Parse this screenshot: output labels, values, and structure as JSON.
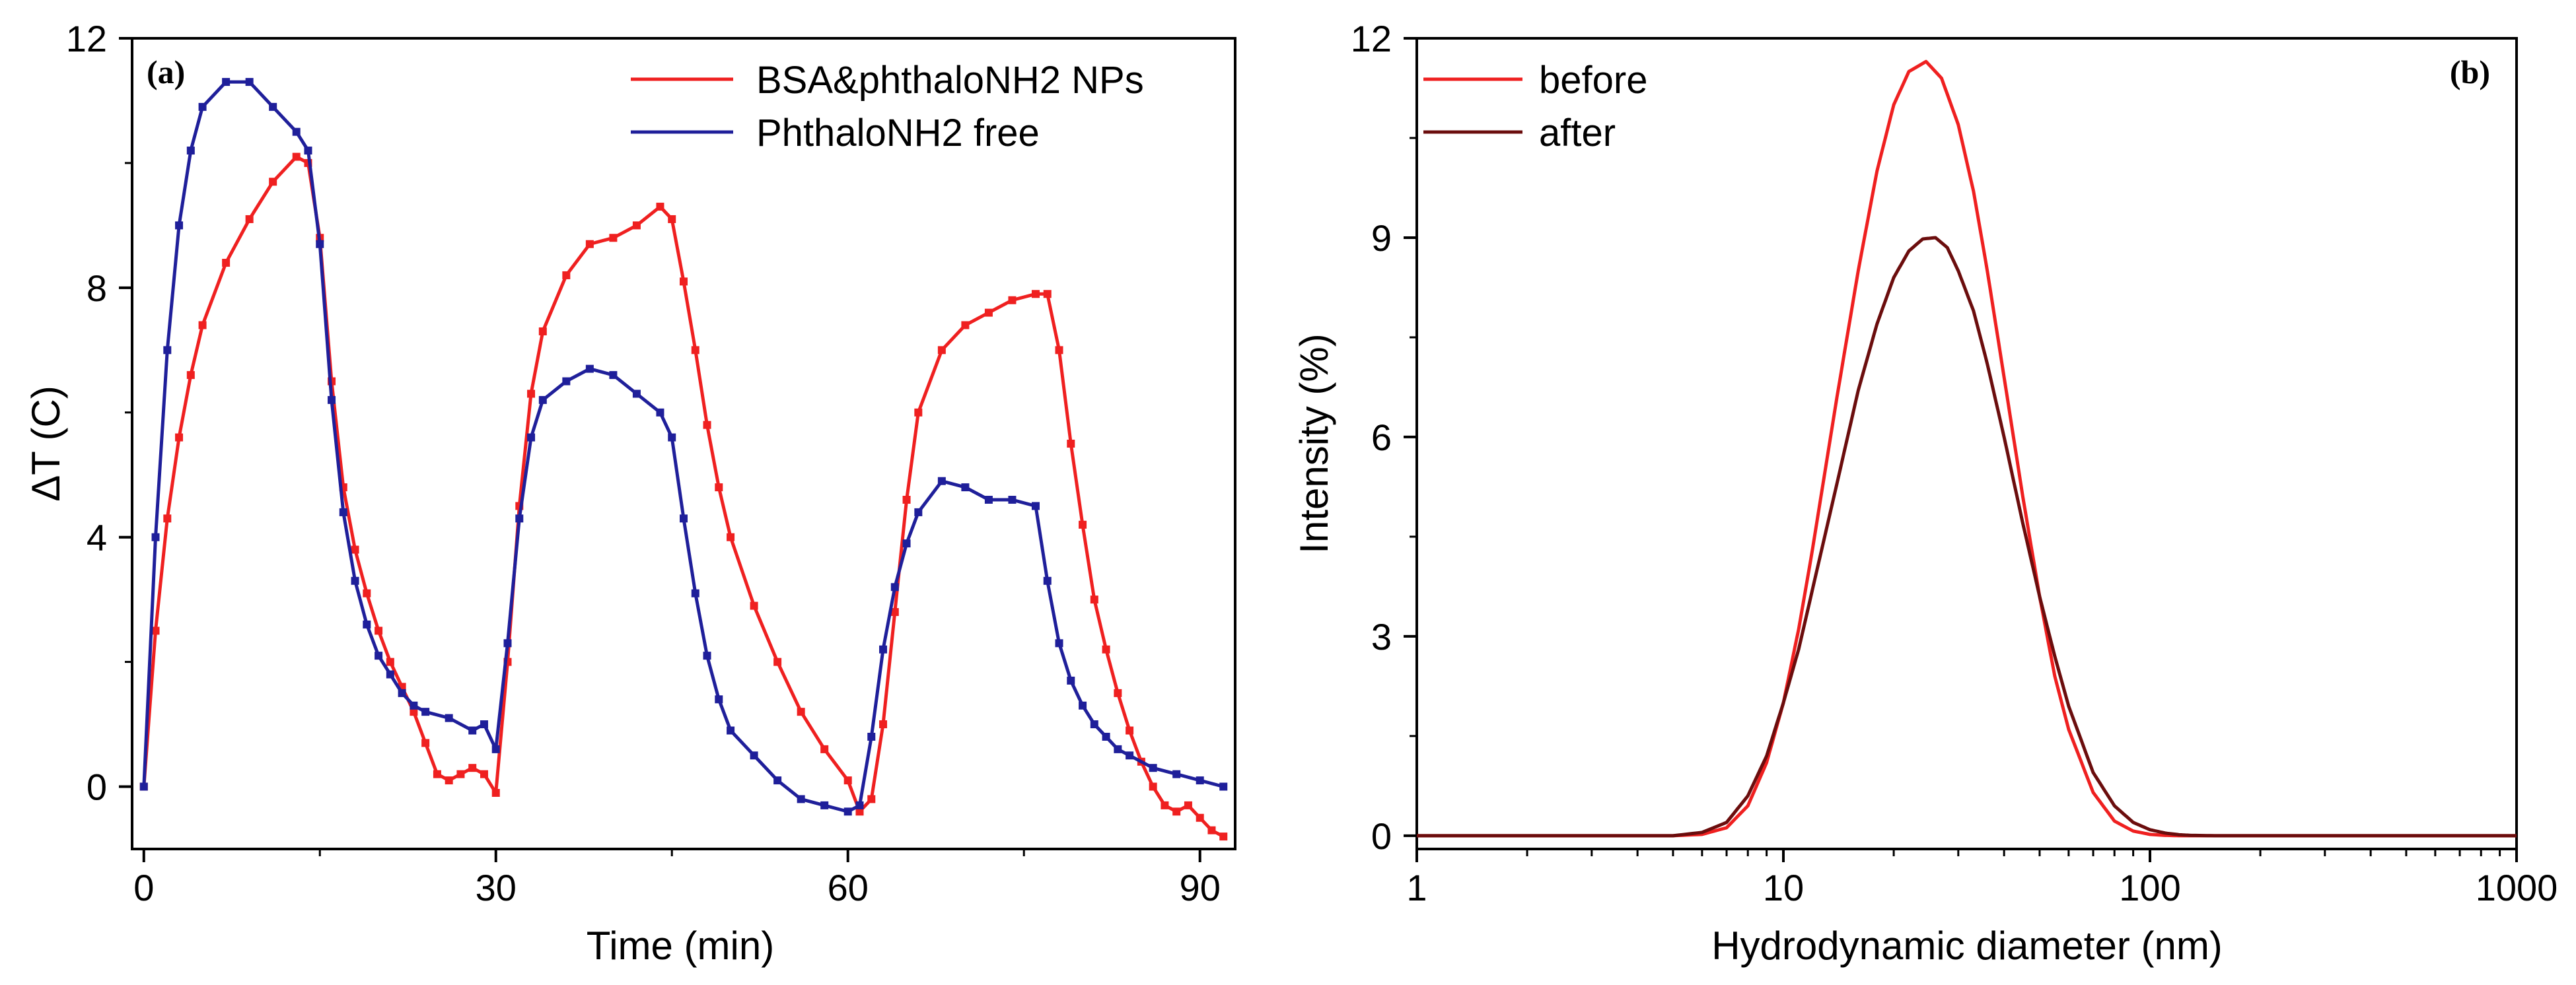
{
  "chart_data": [
    {
      "type": "line",
      "panel_label": "(a)",
      "xlabel": "Time (min)",
      "ylabel": "ΔT (C)",
      "xlim": [
        -1,
        93
      ],
      "ylim": [
        -1,
        12
      ],
      "xticks": [
        0,
        30,
        60,
        90
      ],
      "xtick_labels": [
        "0",
        "30",
        "60",
        "90"
      ],
      "yticks": [
        0,
        4,
        8,
        12
      ],
      "ytick_labels": [
        "0",
        "4",
        "8",
        "12"
      ],
      "grid": false,
      "legend_position": "top-right",
      "markers": "square",
      "series": [
        {
          "name": "BSA&phthaloNH2 NPs",
          "color": "#ef2020",
          "x": [
            0,
            1,
            2,
            3,
            4,
            5,
            7,
            9,
            11,
            13,
            14,
            15,
            16,
            17,
            18,
            19,
            20,
            21,
            22,
            23,
            24,
            25,
            26,
            27,
            28,
            29,
            30,
            31,
            32,
            33,
            34,
            36,
            38,
            40,
            42,
            44,
            45,
            46,
            47,
            48,
            49,
            50,
            52,
            54,
            56,
            58,
            60,
            61,
            62,
            63,
            64,
            65,
            66,
            68,
            70,
            72,
            74,
            76,
            77,
            78,
            79,
            80,
            81,
            82,
            83,
            84,
            85,
            86,
            87,
            88,
            89,
            90,
            91,
            92
          ],
          "values": [
            0.0,
            2.5,
            4.3,
            5.6,
            6.6,
            7.4,
            8.4,
            9.1,
            9.7,
            10.1,
            10.0,
            8.8,
            6.5,
            4.8,
            3.8,
            3.1,
            2.5,
            2.0,
            1.6,
            1.2,
            0.7,
            0.2,
            0.1,
            0.2,
            0.3,
            0.2,
            -0.1,
            2.0,
            4.5,
            6.3,
            7.3,
            8.2,
            8.7,
            8.8,
            9.0,
            9.3,
            9.1,
            8.1,
            7.0,
            5.8,
            4.8,
            4.0,
            2.9,
            2.0,
            1.2,
            0.6,
            0.1,
            -0.4,
            -0.2,
            1.0,
            2.8,
            4.6,
            6.0,
            7.0,
            7.4,
            7.6,
            7.8,
            7.9,
            7.9,
            7.0,
            5.5,
            4.2,
            3.0,
            2.2,
            1.5,
            0.9,
            0.4,
            0.0,
            -0.3,
            -0.4,
            -0.3,
            -0.5,
            -0.7,
            -0.8
          ]
        },
        {
          "name": "PhthaloNH2 free",
          "color": "#1f1f9a",
          "x": [
            0,
            1,
            2,
            3,
            4,
            5,
            7,
            9,
            11,
            13,
            14,
            15,
            16,
            17,
            18,
            19,
            20,
            21,
            22,
            23,
            24,
            26,
            28,
            29,
            30,
            31,
            32,
            33,
            34,
            36,
            38,
            40,
            42,
            44,
            45,
            46,
            47,
            48,
            49,
            50,
            52,
            54,
            56,
            58,
            60,
            61,
            62,
            63,
            64,
            65,
            66,
            68,
            70,
            72,
            74,
            76,
            77,
            78,
            79,
            80,
            81,
            82,
            83,
            84,
            86,
            88,
            90,
            92
          ],
          "values": [
            0.0,
            4.0,
            7.0,
            9.0,
            10.2,
            10.9,
            11.3,
            11.3,
            10.9,
            10.5,
            10.2,
            8.7,
            6.2,
            4.4,
            3.3,
            2.6,
            2.1,
            1.8,
            1.5,
            1.3,
            1.2,
            1.1,
            0.9,
            1.0,
            0.6,
            2.3,
            4.3,
            5.6,
            6.2,
            6.5,
            6.7,
            6.6,
            6.3,
            6.0,
            5.6,
            4.3,
            3.1,
            2.1,
            1.4,
            0.9,
            0.5,
            0.1,
            -0.2,
            -0.3,
            -0.4,
            -0.3,
            0.8,
            2.2,
            3.2,
            3.9,
            4.4,
            4.9,
            4.8,
            4.6,
            4.6,
            4.5,
            3.3,
            2.3,
            1.7,
            1.3,
            1.0,
            0.8,
            0.6,
            0.5,
            0.3,
            0.2,
            0.1,
            0.0
          ]
        }
      ]
    },
    {
      "type": "line",
      "panel_label": "(b)",
      "xlabel": "Hydrodynamic diameter (nm)",
      "ylabel": "Intensity (%)",
      "xscale": "log",
      "xlim": [
        1,
        1000
      ],
      "ylim": [
        -0.2,
        12
      ],
      "xticks": [
        1,
        10,
        100,
        1000
      ],
      "xtick_labels": [
        "1",
        "10",
        "100",
        "1000"
      ],
      "yticks": [
        0,
        3,
        6,
        9,
        12
      ],
      "ytick_labels": [
        "0",
        "3",
        "6",
        "9",
        "12"
      ],
      "grid": false,
      "legend_position": "top-left",
      "series": [
        {
          "name": "before",
          "color": "#ef2020",
          "peak_x": 24.5,
          "x": [
            1,
            5,
            6,
            7,
            8,
            9,
            10,
            11,
            12,
            14,
            16,
            18,
            20,
            22,
            24.5,
            27,
            30,
            33,
            36,
            40,
            45,
            50,
            55,
            60,
            70,
            80,
            90,
            100,
            110,
            120,
            150,
            200,
            1000
          ],
          "values": [
            0,
            0,
            0.02,
            0.12,
            0.45,
            1.1,
            2.0,
            3.1,
            4.3,
            6.6,
            8.5,
            10.0,
            11.0,
            11.5,
            11.65,
            11.4,
            10.7,
            9.7,
            8.5,
            6.9,
            5.1,
            3.6,
            2.4,
            1.6,
            0.65,
            0.22,
            0.07,
            0.02,
            0.005,
            0,
            0,
            0,
            0
          ]
        },
        {
          "name": "after",
          "color": "#6b0d0d",
          "peak_x": 26,
          "x": [
            1,
            5,
            6,
            7,
            8,
            9,
            10,
            11,
            12,
            14,
            16,
            18,
            20,
            22,
            24,
            26,
            28,
            30,
            33,
            36,
            40,
            45,
            50,
            55,
            60,
            70,
            80,
            90,
            100,
            110,
            120,
            130,
            150,
            200,
            1000
          ],
          "values": [
            0,
            0,
            0.05,
            0.2,
            0.6,
            1.2,
            2.0,
            2.8,
            3.7,
            5.3,
            6.7,
            7.7,
            8.4,
            8.8,
            8.98,
            9.0,
            8.85,
            8.5,
            7.9,
            7.1,
            6.0,
            4.7,
            3.6,
            2.7,
            1.95,
            0.95,
            0.45,
            0.2,
            0.09,
            0.04,
            0.015,
            0.005,
            0,
            0,
            0
          ]
        }
      ]
    }
  ]
}
